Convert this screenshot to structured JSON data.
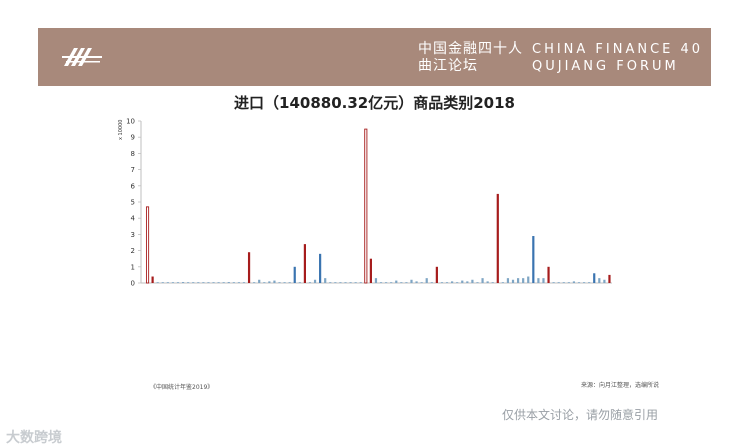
{
  "header": {
    "forum_cn": "中国金融四十人\n曲江论坛",
    "forum_en": "CHINA FINANCE 40\nQUJIANG FORUM"
  },
  "chart_data": {
    "type": "bar",
    "title": "进口（140880.32亿元）商品类别2018",
    "unit_label": "x 10000",
    "ylim": [
      0,
      10
    ],
    "yticks": [
      0,
      1,
      2,
      3,
      4,
      5,
      6,
      7,
      8,
      9,
      10
    ],
    "grid": false,
    "series": [
      {
        "values": [
          4.7,
          0.4,
          0.05,
          0.05,
          0.05,
          0.05,
          0.05,
          0.06,
          0.05,
          0.05,
          0.05,
          0.05,
          0.05,
          0.05,
          0.05,
          0.05,
          0.06,
          0.05,
          0.05,
          0.05,
          1.9,
          0.05,
          0.2,
          0.05,
          0.1,
          0.15,
          0.05,
          0.05,
          0.05,
          1.0,
          0.05,
          2.4,
          0.05,
          0.2,
          1.8,
          0.3,
          0.05,
          0.05,
          0.05,
          0.05,
          0.05,
          0.05,
          0.05,
          9.5,
          1.5,
          0.3,
          0.05,
          0.05,
          0.05,
          0.15,
          0.05,
          0.05,
          0.2,
          0.1,
          0.05,
          0.3,
          0.05,
          1.0,
          0.05,
          0.05,
          0.1,
          0.05,
          0.15,
          0.1,
          0.2,
          0.05,
          0.3,
          0.1,
          0.05,
          5.5,
          0.05,
          0.3,
          0.2,
          0.3,
          0.3,
          0.4,
          2.9,
          0.3,
          0.3,
          1.0,
          0.05,
          0.05,
          0.05,
          0.05,
          0.1,
          0.05,
          0.05,
          0.05,
          0.6,
          0.3,
          0.2,
          0.5
        ]
      }
    ],
    "bar_colors": [
      "#a61c1c",
      "#a61c1c",
      "#7ea5c4",
      "#7ea5c4",
      "#7ea5c4",
      "#7ea5c4",
      "#7ea5c4",
      "#7ea5c4",
      "#7ea5c4",
      "#7ea5c4",
      "#7ea5c4",
      "#7ea5c4",
      "#7ea5c4",
      "#7ea5c4",
      "#7ea5c4",
      "#7ea5c4",
      "#7ea5c4",
      "#7ea5c4",
      "#7ea5c4",
      "#7ea5c4",
      "#a61c1c",
      "#7ea5c4",
      "#7ea5c4",
      "#7ea5c4",
      "#7ea5c4",
      "#7ea5c4",
      "#7ea5c4",
      "#7ea5c4",
      "#7ea5c4",
      "#3a74b0",
      "#7ea5c4",
      "#a61c1c",
      "#7ea5c4",
      "#7ea5c4",
      "#3a74b0",
      "#7ea5c4",
      "#7ea5c4",
      "#7ea5c4",
      "#7ea5c4",
      "#7ea5c4",
      "#7ea5c4",
      "#7ea5c4",
      "#7ea5c4",
      "#a61c1c",
      "#a61c1c",
      "#7ea5c4",
      "#7ea5c4",
      "#7ea5c4",
      "#7ea5c4",
      "#7ea5c4",
      "#7ea5c4",
      "#7ea5c4",
      "#7ea5c4",
      "#7ea5c4",
      "#7ea5c4",
      "#7ea5c4",
      "#7ea5c4",
      "#a61c1c",
      "#7ea5c4",
      "#7ea5c4",
      "#7ea5c4",
      "#7ea5c4",
      "#7ea5c4",
      "#7ea5c4",
      "#7ea5c4",
      "#7ea5c4",
      "#7ea5c4",
      "#7ea5c4",
      "#7ea5c4",
      "#a61c1c",
      "#7ea5c4",
      "#7ea5c4",
      "#7ea5c4",
      "#7ea5c4",
      "#7ea5c4",
      "#7ea5c4",
      "#3a74b0",
      "#7ea5c4",
      "#7ea5c4",
      "#a61c1c",
      "#7ea5c4",
      "#7ea5c4",
      "#7ea5c4",
      "#7ea5c4",
      "#7ea5c4",
      "#7ea5c4",
      "#7ea5c4",
      "#7ea5c4",
      "#3a74b0",
      "#7ea5c4",
      "#7ea5c4",
      "#a61c1c"
    ]
  },
  "source": "《中国统计年鉴2019》",
  "note": "来源：向月江整理，选编所说",
  "footer_note": "仅供本文讨论，请勿随意引用",
  "watermark": "大数跨境"
}
